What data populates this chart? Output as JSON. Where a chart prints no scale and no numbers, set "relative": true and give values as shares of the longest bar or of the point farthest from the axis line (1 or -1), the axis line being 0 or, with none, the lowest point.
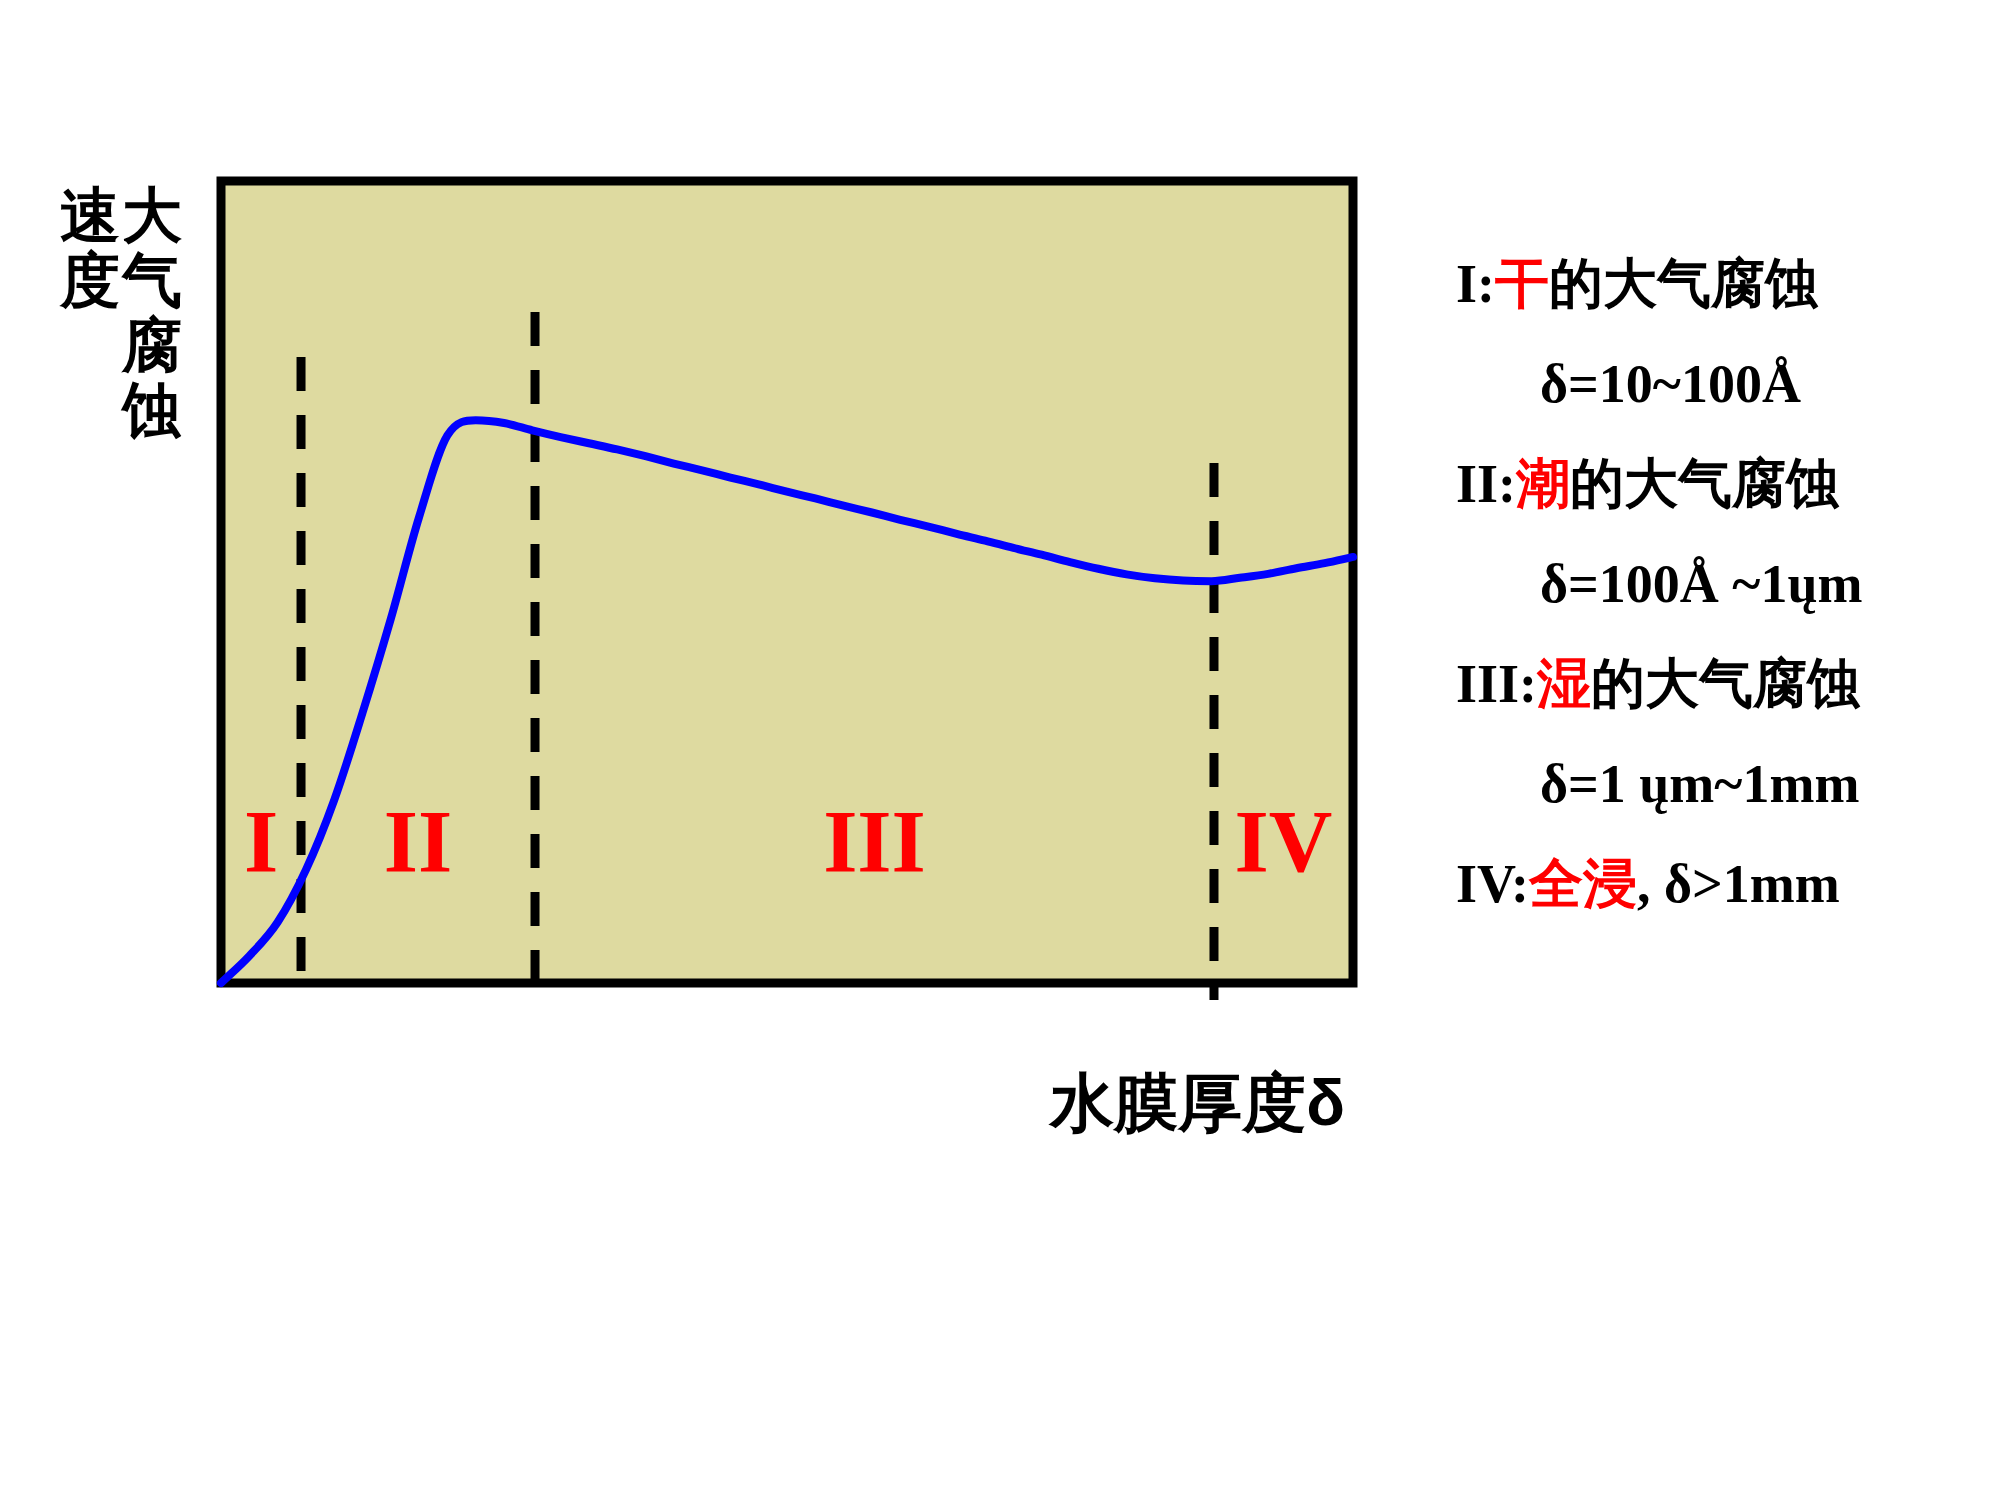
{
  "chart_data": [
    {
      "type": "line",
      "relative": true,
      "xlabel": "水膜厚度δ",
      "ylabel": "大气腐蚀速度",
      "categories": [
        null,
        null,
        null,
        null,
        null,
        null,
        null,
        null,
        null,
        null,
        null,
        null,
        null,
        null,
        null,
        null,
        null,
        null,
        null,
        null,
        null,
        null,
        null,
        null,
        null,
        null,
        null,
        null,
        null,
        null,
        null,
        null,
        null,
        null,
        null,
        null,
        null,
        null,
        null,
        null,
        null
      ],
      "series": [
        {
          "color": "#0000ff",
          "values": [
            0,
            0.048,
            0.108,
            0.201,
            0.325,
            0.48,
            0.647,
            0.828,
            0.973,
            1,
            0.995,
            0.982,
            0.97,
            0.959,
            0.948,
            0.936,
            0.923,
            0.911,
            0.898,
            0.886,
            0.873,
            0.861,
            0.848,
            0.836,
            0.823,
            0.811,
            0.798,
            0.786,
            0.773,
            0.761,
            0.748,
            0.736,
            0.726,
            0.719,
            0.715,
            0.714,
            0.72,
            0.727,
            0.737,
            0.746,
            0.757
          ]
        }
      ],
      "annotations": [
        "I",
        "II",
        "III",
        "IV"
      ]
    },
    {
      "type": "other",
      "annotations": [
        "I:",
        "干",
        "的大气腐蚀",
        "δ=10~100Å",
        "II:",
        "潮",
        "的大气腐蚀",
        "δ=100Å ~1ųm",
        "III:",
        "湿",
        "的大气腐蚀",
        "δ=1 ųm~1mm",
        "IV:",
        "全浸",
        ", δ>1mm"
      ],
      "colors": [
        "#000000",
        "#ff0000",
        "#000000",
        "#000000",
        "#000000",
        "#ff0000",
        "#000000",
        "#000000",
        "#000000",
        "#ff0000",
        "#000000",
        "#000000",
        "#000000",
        "#ff0000",
        "#000000"
      ]
    }
  ]
}
